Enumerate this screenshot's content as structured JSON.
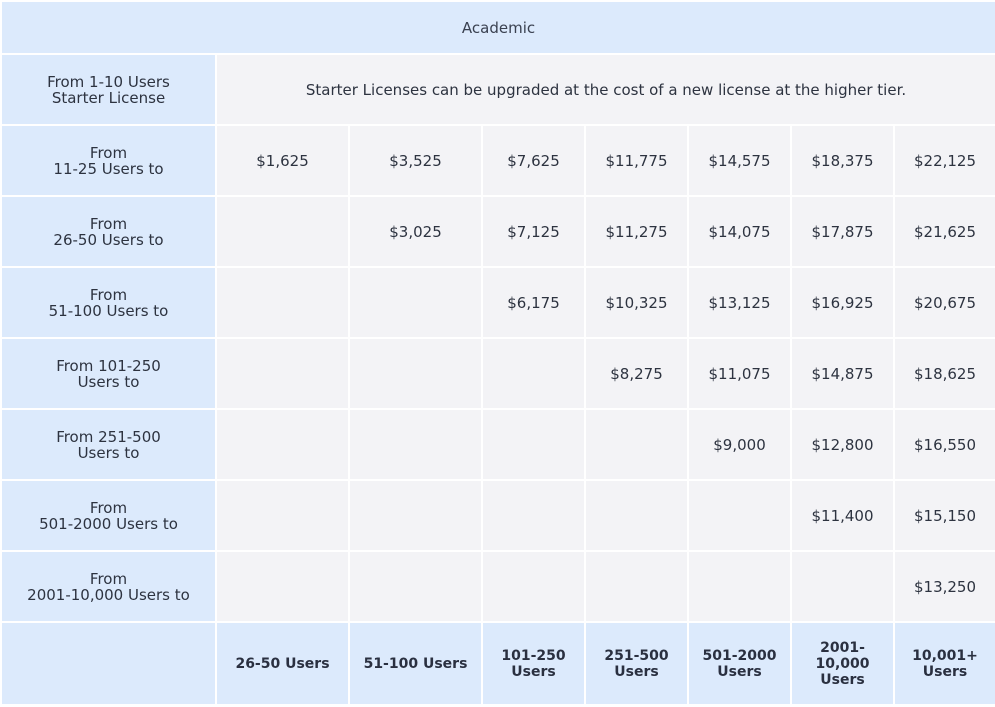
{
  "header": {
    "title": "Academic"
  },
  "starter": {
    "label": "From 1-10 Users\nStarter License",
    "note": "Starter Licenses can be upgraded at the cost of a new license at the higher tier."
  },
  "rows": [
    {
      "label": "From\n11-25 Users to",
      "values": [
        "$1,625",
        "$3,525",
        "$7,625",
        "$11,775",
        "$14,575",
        "$18,375",
        "$22,125"
      ]
    },
    {
      "label": "From\n26-50 Users to",
      "values": [
        "",
        "$3,025",
        "$7,125",
        "$11,275",
        "$14,075",
        "$17,875",
        "$21,625"
      ]
    },
    {
      "label": "From\n51-100 Users to",
      "values": [
        "",
        "",
        "$6,175",
        "$10,325",
        "$13,125",
        "$16,925",
        "$20,675"
      ]
    },
    {
      "label": "From 101-250\nUsers to",
      "values": [
        "",
        "",
        "",
        "$8,275",
        "$11,075",
        "$14,875",
        "$18,625"
      ]
    },
    {
      "label": "From 251-500\nUsers to",
      "values": [
        "",
        "",
        "",
        "",
        "$9,000",
        "$12,800",
        "$16,550"
      ]
    },
    {
      "label": "From\n501-2000 Users to",
      "values": [
        "",
        "",
        "",
        "",
        "",
        "$11,400",
        "$15,150"
      ]
    },
    {
      "label": "From\n2001-10,000 Users to",
      "values": [
        "",
        "",
        "",
        "",
        "",
        "",
        "$13,250"
      ]
    }
  ],
  "footer": {
    "corner": "",
    "columns": [
      "26-50 Users",
      "51-100 Users",
      "101-250\nUsers",
      "251-500\nUsers",
      "501-2000\nUsers",
      "2001-\n10,000\nUsers",
      "10,001+\nUsers"
    ]
  },
  "colors": {
    "label_bg": "#dceafc",
    "cell_bg": "#f3f3f6",
    "text": "#2d3340"
  }
}
